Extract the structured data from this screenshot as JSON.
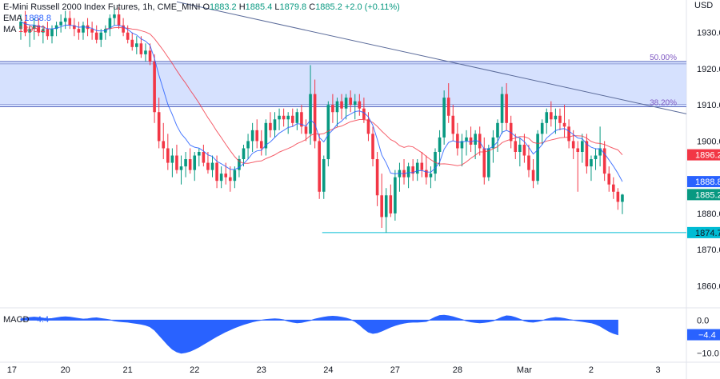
{
  "header": {
    "symbol": "E-Mini Russell 2000 Index Futures, 1h, CME_MINI",
    "o_label": "O",
    "o": "1883.2",
    "h_label": "H",
    "h": "1885.4",
    "l_label": "L",
    "l": "1879.8",
    "c_label": "C",
    "c": "1885.2",
    "change": "+2.0 (+0.11%)",
    "ema_label": "EMA",
    "ema_value": "1888.8",
    "ma_label": "MA",
    "ma_value": "1896.2",
    "currency": "USD"
  },
  "macd_panel": {
    "label": "MACD",
    "value": "−4.4"
  },
  "colors": {
    "up": "#089981",
    "down": "#f23645",
    "ema": "#2962ff",
    "ma": "#f23645",
    "zone": "#c8d7fe",
    "fib": "#7e57c2",
    "support": "#00bcd4",
    "macd": "#2962ff"
  },
  "chart_data": {
    "type": "candlestick",
    "title": "E-Mini Russell 2000 Index Futures, 1h, CME_MINI",
    "ylim": [
      1855,
      1939
    ],
    "y_ticks": [
      "1930.0",
      "1920.0",
      "1910.0",
      "1900.0",
      "1880.0",
      "1870.0",
      "1860.0"
    ],
    "x_ticks": [
      {
        "label": "17",
        "bar": -2
      },
      {
        "label": "20",
        "bar": 10
      },
      {
        "label": "21",
        "bar": 24
      },
      {
        "label": "22",
        "bar": 39
      },
      {
        "label": "23",
        "bar": 54
      },
      {
        "label": "24",
        "bar": 69
      },
      {
        "label": "27",
        "bar": 84
      },
      {
        "label": "28",
        "bar": 98
      },
      {
        "label": "Mar",
        "bar": 113
      },
      {
        "label": "2",
        "bar": 128
      },
      {
        "label": "3",
        "bar": 143
      }
    ],
    "candles": [
      [
        1931,
        1935,
        1928,
        1933
      ],
      [
        1933,
        1936,
        1929,
        1930
      ],
      [
        1930,
        1932,
        1926,
        1931
      ],
      [
        1931,
        1934,
        1928,
        1932
      ],
      [
        1932,
        1934,
        1929,
        1930
      ],
      [
        1930,
        1932,
        1927,
        1931
      ],
      [
        1931,
        1933,
        1928,
        1929
      ],
      [
        1929,
        1932,
        1927,
        1931
      ],
      [
        1931,
        1933,
        1929,
        1932
      ],
      [
        1932,
        1935,
        1930,
        1933
      ],
      [
        1933,
        1936,
        1931,
        1934
      ],
      [
        1934,
        1936,
        1931,
        1932
      ],
      [
        1932,
        1934,
        1929,
        1931
      ],
      [
        1931,
        1933,
        1928,
        1930
      ],
      [
        1930,
        1933,
        1928,
        1932
      ],
      [
        1932,
        1934,
        1929,
        1931
      ],
      [
        1931,
        1933,
        1928,
        1930
      ],
      [
        1930,
        1932,
        1927,
        1928
      ],
      [
        1928,
        1931,
        1926,
        1930
      ],
      [
        1930,
        1932,
        1928,
        1931
      ],
      [
        1931,
        1935,
        1929,
        1934
      ],
      [
        1934,
        1937,
        1932,
        1935
      ],
      [
        1935,
        1937,
        1931,
        1932
      ],
      [
        1932,
        1934,
        1929,
        1930
      ],
      [
        1930,
        1932,
        1927,
        1928
      ],
      [
        1928,
        1930,
        1925,
        1926
      ],
      [
        1926,
        1929,
        1924,
        1927
      ],
      [
        1927,
        1929,
        1923,
        1924
      ],
      [
        1924,
        1927,
        1922,
        1925
      ],
      [
        1925,
        1927,
        1921,
        1922
      ],
      [
        1922,
        1924,
        1905,
        1908
      ],
      [
        1908,
        1912,
        1898,
        1900
      ],
      [
        1900,
        1905,
        1895,
        1898
      ],
      [
        1898,
        1902,
        1892,
        1894
      ],
      [
        1894,
        1898,
        1890,
        1896
      ],
      [
        1896,
        1899,
        1891,
        1892
      ],
      [
        1892,
        1896,
        1888,
        1893
      ],
      [
        1893,
        1897,
        1890,
        1895
      ],
      [
        1895,
        1898,
        1891,
        1892
      ],
      [
        1892,
        1897,
        1889,
        1896
      ],
      [
        1896,
        1898,
        1893,
        1897
      ],
      [
        1897,
        1899,
        1893,
        1894
      ],
      [
        1894,
        1897,
        1891,
        1892
      ],
      [
        1892,
        1896,
        1890,
        1894
      ],
      [
        1894,
        1896,
        1887,
        1889
      ],
      [
        1889,
        1893,
        1887,
        1891
      ],
      [
        1891,
        1894,
        1888,
        1890
      ],
      [
        1890,
        1893,
        1886,
        1889
      ],
      [
        1889,
        1893,
        1887,
        1892
      ],
      [
        1892,
        1896,
        1890,
        1895
      ],
      [
        1895,
        1899,
        1893,
        1898
      ],
      [
        1898,
        1902,
        1895,
        1900
      ],
      [
        1900,
        1905,
        1897,
        1903
      ],
      [
        1903,
        1906,
        1898,
        1900
      ],
      [
        1900,
        1903,
        1896,
        1898
      ],
      [
        1898,
        1906,
        1896,
        1905
      ],
      [
        1905,
        1908,
        1901,
        1903
      ],
      [
        1903,
        1908,
        1901,
        1906
      ],
      [
        1906,
        1909,
        1903,
        1907
      ],
      [
        1907,
        1909,
        1904,
        1906
      ],
      [
        1906,
        1908,
        1902,
        1907
      ],
      [
        1907,
        1909,
        1904,
        1905
      ],
      [
        1905,
        1909,
        1903,
        1908
      ],
      [
        1908,
        1910,
        1902,
        1904
      ],
      [
        1904,
        1906,
        1900,
        1902
      ],
      [
        1902,
        1921,
        1899,
        1913
      ],
      [
        1913,
        1917,
        1898,
        1900
      ],
      [
        1900,
        1902,
        1884,
        1886
      ],
      [
        1886,
        1896,
        1884,
        1895
      ],
      [
        1895,
        1911,
        1893,
        1910
      ],
      [
        1910,
        1913,
        1905,
        1908
      ],
      [
        1908,
        1912,
        1904,
        1911
      ],
      [
        1911,
        1913,
        1906,
        1909
      ],
      [
        1909,
        1913,
        1906,
        1912
      ],
      [
        1912,
        1914,
        1908,
        1910
      ],
      [
        1910,
        1913,
        1906,
        1911
      ],
      [
        1911,
        1913,
        1907,
        1909
      ],
      [
        1909,
        1912,
        1905,
        1906
      ],
      [
        1906,
        1908,
        1900,
        1902
      ],
      [
        1902,
        1904,
        1893,
        1895
      ],
      [
        1895,
        1897,
        1882,
        1885
      ],
      [
        1885,
        1891,
        1876,
        1879
      ],
      [
        1879,
        1887,
        1874.7,
        1885
      ],
      [
        1885,
        1888,
        1879,
        1880
      ],
      [
        1880,
        1892,
        1878,
        1890
      ],
      [
        1890,
        1894,
        1886,
        1892
      ],
      [
        1892,
        1895,
        1888,
        1890
      ],
      [
        1890,
        1894,
        1887,
        1893
      ],
      [
        1893,
        1895,
        1889,
        1891
      ],
      [
        1891,
        1895,
        1889,
        1894
      ],
      [
        1894,
        1897,
        1890,
        1892
      ],
      [
        1892,
        1896,
        1888,
        1890
      ],
      [
        1890,
        1893,
        1887,
        1891
      ],
      [
        1891,
        1898,
        1889,
        1897
      ],
      [
        1897,
        1903,
        1893,
        1901
      ],
      [
        1901,
        1914,
        1899,
        1912
      ],
      [
        1912,
        1916,
        1905,
        1907
      ],
      [
        1907,
        1910,
        1900,
        1902
      ],
      [
        1902,
        1905,
        1896,
        1898
      ],
      [
        1898,
        1902,
        1893,
        1900
      ],
      [
        1900,
        1903,
        1896,
        1901
      ],
      [
        1901,
        1904,
        1897,
        1899
      ],
      [
        1899,
        1903,
        1895,
        1902
      ],
      [
        1902,
        1904,
        1896,
        1898
      ],
      [
        1898,
        1901,
        1888,
        1890
      ],
      [
        1890,
        1899,
        1889,
        1898
      ],
      [
        1898,
        1903,
        1894,
        1901
      ],
      [
        1901,
        1906,
        1897,
        1905
      ],
      [
        1905,
        1915,
        1902,
        1913
      ],
      [
        1913,
        1916,
        1903,
        1905
      ],
      [
        1905,
        1907,
        1898,
        1900
      ],
      [
        1900,
        1902,
        1895,
        1897
      ],
      [
        1897,
        1901,
        1893,
        1899
      ],
      [
        1899,
        1902,
        1894,
        1896
      ],
      [
        1896,
        1899,
        1890,
        1892
      ],
      [
        1892,
        1895,
        1887,
        1889
      ],
      [
        1889,
        1903,
        1888,
        1902
      ],
      [
        1902,
        1906,
        1899,
        1905
      ],
      [
        1905,
        1909,
        1902,
        1908
      ],
      [
        1908,
        1911,
        1904,
        1906
      ],
      [
        1906,
        1909,
        1902,
        1907
      ],
      [
        1907,
        1909,
        1903,
        1905
      ],
      [
        1905,
        1910,
        1901,
        1904
      ],
      [
        1904,
        1906,
        1898,
        1900
      ],
      [
        1900,
        1903,
        1895,
        1898
      ],
      [
        1898,
        1900,
        1886,
        1897
      ],
      [
        1897,
        1902,
        1894,
        1900
      ],
      [
        1900,
        1902,
        1891,
        1893
      ],
      [
        1893,
        1896,
        1889,
        1895
      ],
      [
        1895,
        1898,
        1892,
        1896
      ],
      [
        1896,
        1904,
        1893,
        1898
      ],
      [
        1898,
        1900,
        1889,
        1891
      ],
      [
        1891,
        1893,
        1886,
        1888
      ],
      [
        1888,
        1890,
        1884,
        1886
      ],
      [
        1886,
        1887,
        1881,
        1883.2
      ],
      [
        1883.2,
        1885.4,
        1879.8,
        1885.2
      ]
    ],
    "ema": {
      "name": "EMA",
      "last": 1888.8
    },
    "ma": {
      "name": "MA",
      "last": 1896.2
    },
    "fib_zone": {
      "top": 1922,
      "bottom": 1909.5,
      "labels": [
        {
          "text": "50.00%",
          "price": 1922
        },
        {
          "text": "38.20%",
          "price": 1909.5
        }
      ]
    },
    "trendline": {
      "from": {
        "bar": 35,
        "price": 1938.5
      },
      "to": {
        "bar": 131,
        "price": 1912.5
      }
    },
    "support": {
      "price": 1874.7,
      "from_bar": 68
    },
    "price_tags": [
      {
        "value": "1896.2",
        "kind": "ma"
      },
      {
        "value": "1888.8",
        "kind": "ema"
      },
      {
        "value": "1885.2",
        "kind": "last"
      },
      {
        "value": "1874.7",
        "kind": "support"
      }
    ],
    "macd": {
      "ylim": [
        -12,
        3
      ],
      "y_ticks": [
        "0.0",
        "−10.0"
      ],
      "tag": "−4.4",
      "values": [
        0.4,
        0.6,
        0.8,
        0.9,
        0.8,
        0.6,
        0.4,
        0.5,
        0.7,
        0.9,
        1.0,
        0.9,
        0.7,
        0.5,
        0.3,
        0.4,
        0.6,
        0.7,
        0.5,
        0.3,
        0.1,
        -0.2,
        -0.4,
        -0.5,
        -0.6,
        -0.8,
        -1.0,
        -1.2,
        -1.5,
        -2.0,
        -3.0,
        -4.5,
        -6.0,
        -7.5,
        -8.8,
        -9.6,
        -10.0,
        -9.8,
        -9.4,
        -8.8,
        -8.1,
        -7.3,
        -6.5,
        -5.7,
        -4.9,
        -4.2,
        -3.5,
        -2.9,
        -2.3,
        -1.8,
        -1.3,
        -0.9,
        -0.5,
        -0.2,
        0.0,
        0.2,
        0.3,
        0.4,
        0.3,
        0.1,
        -0.3,
        -0.6,
        -0.8,
        -0.7,
        -0.4,
        -0.1,
        0.3,
        0.6,
        0.9,
        1.1,
        1.2,
        1.1,
        0.9,
        0.6,
        0.2,
        -0.4,
        -1.4,
        -2.6,
        -3.6,
        -4.0,
        -3.8,
        -3.3,
        -2.7,
        -2.1,
        -1.6,
        -1.2,
        -0.9,
        -0.7,
        -0.6,
        -0.6,
        -0.5,
        -0.4,
        0.2,
        0.9,
        1.4,
        1.5,
        1.3,
        1.0,
        0.6,
        0.2,
        -0.2,
        -0.5,
        -0.7,
        -0.8,
        -0.7,
        -0.5,
        -0.2,
        0.3,
        0.9,
        1.3,
        1.2,
        0.8,
        0.3,
        -0.2,
        -0.5,
        -0.6,
        -0.4,
        -0.1,
        0.3,
        0.6,
        0.8,
        0.7,
        0.5,
        0.2,
        0.0,
        -0.2,
        -0.4,
        -0.6,
        -0.8,
        -1.2,
        -1.8,
        -2.6,
        -3.4,
        -4.0,
        -4.4
      ]
    }
  }
}
